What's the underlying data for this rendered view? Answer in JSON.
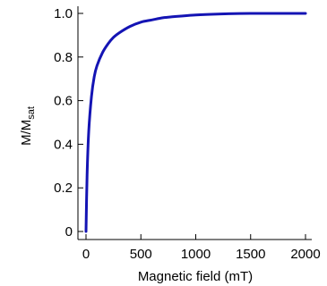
{
  "chart_data": {
    "type": "line",
    "title": "",
    "xlabel": "Magnetic field (mT)",
    "ylabel": {
      "main": "M/M",
      "subscript": "sat"
    },
    "xlim": [
      0,
      2000
    ],
    "ylim": [
      0,
      1.0
    ],
    "xticks": [
      0,
      500,
      1000,
      1500,
      2000
    ],
    "yticks": [
      0,
      0.2,
      0.4,
      0.6,
      0.8,
      1.0
    ],
    "xtick_labels": [
      "0",
      "500",
      "1000",
      "1500",
      "2000"
    ],
    "ytick_labels": [
      "0",
      "0.2",
      "0.4",
      "0.6",
      "0.8",
      "1.0"
    ],
    "grid": false,
    "series": [
      {
        "color": "#1414b4",
        "x": [
          0,
          10,
          25,
          50,
          75,
          100,
          150,
          200,
          250,
          300,
          400,
          500,
          600,
          700,
          800,
          1000,
          1200,
          1500,
          2000
        ],
        "y": [
          0.0,
          0.26,
          0.46,
          0.62,
          0.71,
          0.76,
          0.82,
          0.86,
          0.89,
          0.91,
          0.94,
          0.96,
          0.97,
          0.98,
          0.985,
          0.993,
          0.997,
          1.0,
          1.0
        ]
      }
    ]
  }
}
